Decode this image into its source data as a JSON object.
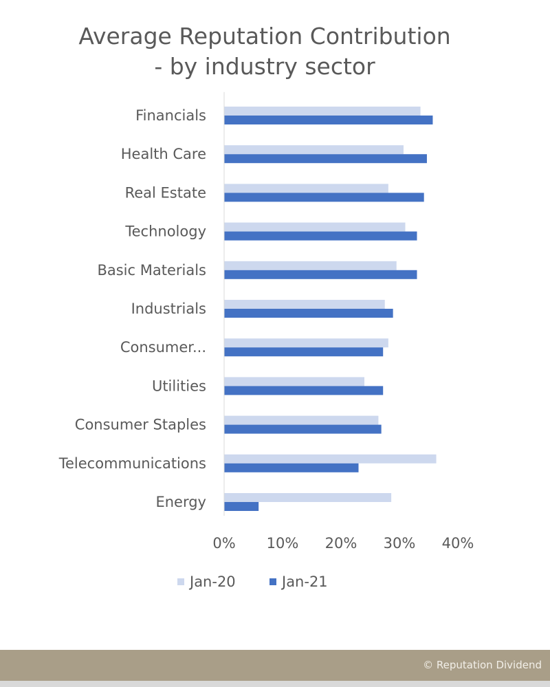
{
  "title_lines": [
    "Average Reputation Contribution",
    "- by industry sector"
  ],
  "footer": {
    "text": "© Reputation Dividend",
    "color": "#a99e88"
  },
  "colors": {
    "jan20": "#cdd8ee",
    "jan21": "#4472c4",
    "text": "#595959"
  },
  "chart_data": {
    "type": "bar",
    "orientation": "horizontal",
    "categories": [
      "Financials",
      "Health Care",
      "Real Estate",
      "Technology",
      "Basic Materials",
      "Industrials",
      "Consumer...",
      "Utilities",
      "Consumer Staples",
      "Telecommunications",
      "Energy"
    ],
    "series": [
      {
        "name": "Jan-20",
        "values": [
          33.6,
          30.7,
          28.1,
          31.0,
          29.5,
          27.5,
          28.1,
          24.0,
          26.4,
          36.3,
          28.6
        ]
      },
      {
        "name": "Jan-21",
        "values": [
          35.7,
          34.7,
          34.2,
          33.0,
          33.0,
          28.9,
          27.2,
          27.2,
          26.9,
          23.0,
          5.9
        ]
      }
    ],
    "x_ticks": [
      "0%",
      "10%",
      "20%",
      "30%",
      "40%"
    ],
    "xlim": [
      0,
      40
    ],
    "legend_position": "bottom",
    "grid": false
  }
}
